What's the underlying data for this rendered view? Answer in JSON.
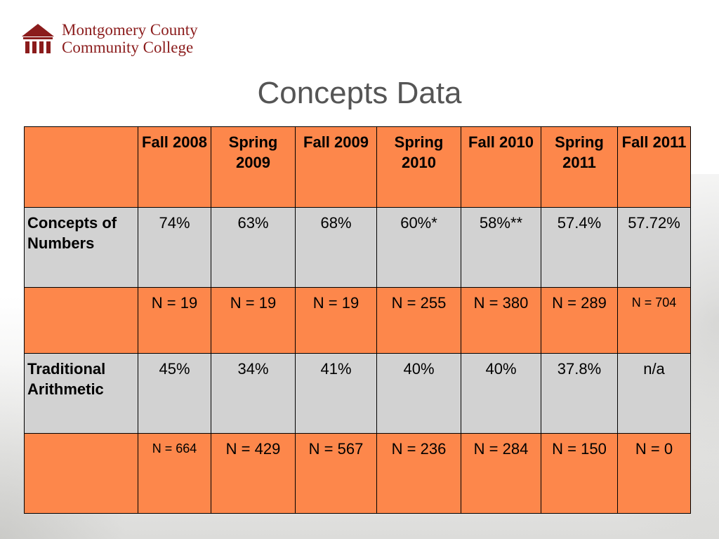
{
  "logo": {
    "line1": "Montgomery County",
    "line2": "Community College"
  },
  "title": "Concepts Data",
  "table": {
    "columns": [
      "Fall 2008",
      "Spring 2009",
      "Fall 2009",
      "Spring 2010",
      "Fall 2010",
      "Spring 2011",
      "Fall 2011"
    ],
    "rows": [
      {
        "label": "Concepts of Numbers",
        "values": [
          "74%",
          "63%",
          "68%",
          "60%*",
          "58%**",
          "57.4%",
          "57.72%"
        ]
      },
      {
        "label": "",
        "values": [
          "N = 19",
          "N = 19",
          "N = 19",
          "N = 255",
          "N = 380",
          "N = 289",
          "N = 704"
        ]
      },
      {
        "label": "Traditional Arithmetic",
        "values": [
          "45%",
          "34%",
          "41%",
          "40%",
          "40%",
          "37.8%",
          "n/a"
        ]
      },
      {
        "label": "",
        "values": [
          "N = 664",
          "N = 429",
          "N = 567",
          "N = 236",
          "N = 284",
          "N = 150",
          "N = 0"
        ]
      }
    ]
  },
  "colors": {
    "header_orange": "#fd874b",
    "row_gray": "#d2d2d2",
    "brand_maroon": "#8b1c1c"
  }
}
